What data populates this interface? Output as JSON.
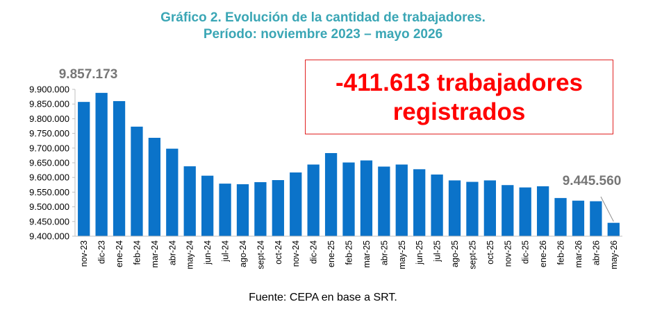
{
  "header": {
    "title_line_1": "Gráfico 2. Evolución de la cantidad de trabajadores.",
    "title_line_2": "Período: noviembre 2023 – mayo 2026"
  },
  "callout": {
    "line_1": "-411.613 trabajadores",
    "line_2": "registrados"
  },
  "footer": {
    "source": "Fuente: CEPA en base a SRT."
  },
  "chart_data": {
    "type": "bar",
    "title": "Gráfico 2. Evolución de la cantidad de trabajadores. Período: noviembre 2023 – mayo 2026",
    "xlabel": "",
    "ylabel": "",
    "ylim": [
      9400000,
      9900000
    ],
    "yticks": [
      9400000,
      9450000,
      9500000,
      9550000,
      9600000,
      9650000,
      9700000,
      9750000,
      9800000,
      9850000,
      9900000
    ],
    "ytick_labels": [
      "9.400.000",
      "9.450.000",
      "9.500.000",
      "9.550.000",
      "9.600.000",
      "9.650.000",
      "9.700.000",
      "9.750.000",
      "9.800.000",
      "9.850.000",
      "9.900.000"
    ],
    "grid": false,
    "legend": "none",
    "bar_color": "#0b73c9",
    "categories": [
      "nov-23",
      "dic-23",
      "ene-24",
      "feb-24",
      "mar-24",
      "abr-24",
      "may-24",
      "jun-24",
      "jul-24",
      "ago-24",
      "sept-24",
      "oct-24",
      "nov-24",
      "dic-24",
      "ene-25",
      "feb-25",
      "mar-25",
      "abr-25",
      "may-25",
      "jun-25",
      "jul-25",
      "ago-25",
      "sept-25",
      "oct-25",
      "nov-25",
      "dic-25",
      "ene-26",
      "feb-26",
      "mar-26",
      "abr-26",
      "may-26"
    ],
    "values": [
      9857173,
      9888000,
      9860000,
      9773000,
      9735000,
      9698000,
      9638000,
      9606000,
      9579000,
      9577000,
      9584000,
      9591000,
      9617000,
      9644000,
      9683000,
      9651000,
      9658000,
      9637000,
      9644000,
      9628000,
      9610000,
      9590000,
      9585000,
      9590000,
      9574000,
      9566000,
      9570000,
      9530000,
      9521000,
      9519000,
      9445560
    ],
    "annotations": [
      {
        "category": "nov-23",
        "text": "9.857.173"
      },
      {
        "category": "may-26",
        "text": "9.445.560"
      }
    ]
  }
}
